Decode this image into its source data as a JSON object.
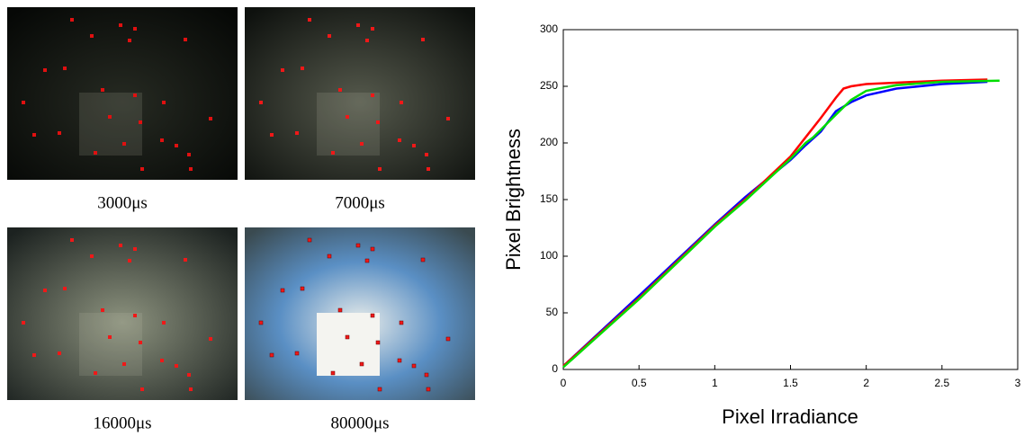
{
  "images": [
    {
      "caption": "3000μs"
    },
    {
      "caption": "7000μs"
    },
    {
      "caption": "16000μs"
    },
    {
      "caption": "80000μs"
    }
  ],
  "chart_data": {
    "type": "line",
    "xlabel": "Pixel Irradiance",
    "ylabel": "Pixel Brightness",
    "xlim": [
      0,
      3
    ],
    "ylim": [
      0,
      300
    ],
    "xticks": [
      0,
      0.5,
      1,
      1.5,
      2,
      2.5,
      3
    ],
    "yticks": [
      0,
      50,
      100,
      150,
      200,
      250,
      300
    ],
    "series": [
      {
        "color": "#0000ff",
        "x": [
          0,
          0.5,
          1,
          1.2,
          1.5,
          1.6,
          1.7,
          1.8,
          1.9,
          2.0,
          2.2,
          2.5,
          2.8
        ],
        "values": [
          3,
          65,
          128,
          152,
          185,
          198,
          210,
          228,
          236,
          242,
          248,
          252,
          254
        ]
      },
      {
        "color": "#ff0000",
        "x": [
          0,
          0.5,
          1,
          1.2,
          1.5,
          1.6,
          1.7,
          1.8,
          1.85,
          1.9,
          2.0,
          2.5,
          2.8
        ],
        "values": [
          3,
          63,
          127,
          150,
          188,
          205,
          222,
          240,
          248,
          250,
          252,
          255,
          256
        ]
      },
      {
        "color": "#00dd00",
        "x": [
          0,
          0.5,
          1,
          1.2,
          1.5,
          1.6,
          1.65,
          1.8,
          1.9,
          2.0,
          2.2,
          2.5,
          2.88
        ],
        "values": [
          2,
          62,
          126,
          149,
          186,
          200,
          205,
          225,
          238,
          246,
          251,
          254,
          255
        ]
      }
    ]
  }
}
